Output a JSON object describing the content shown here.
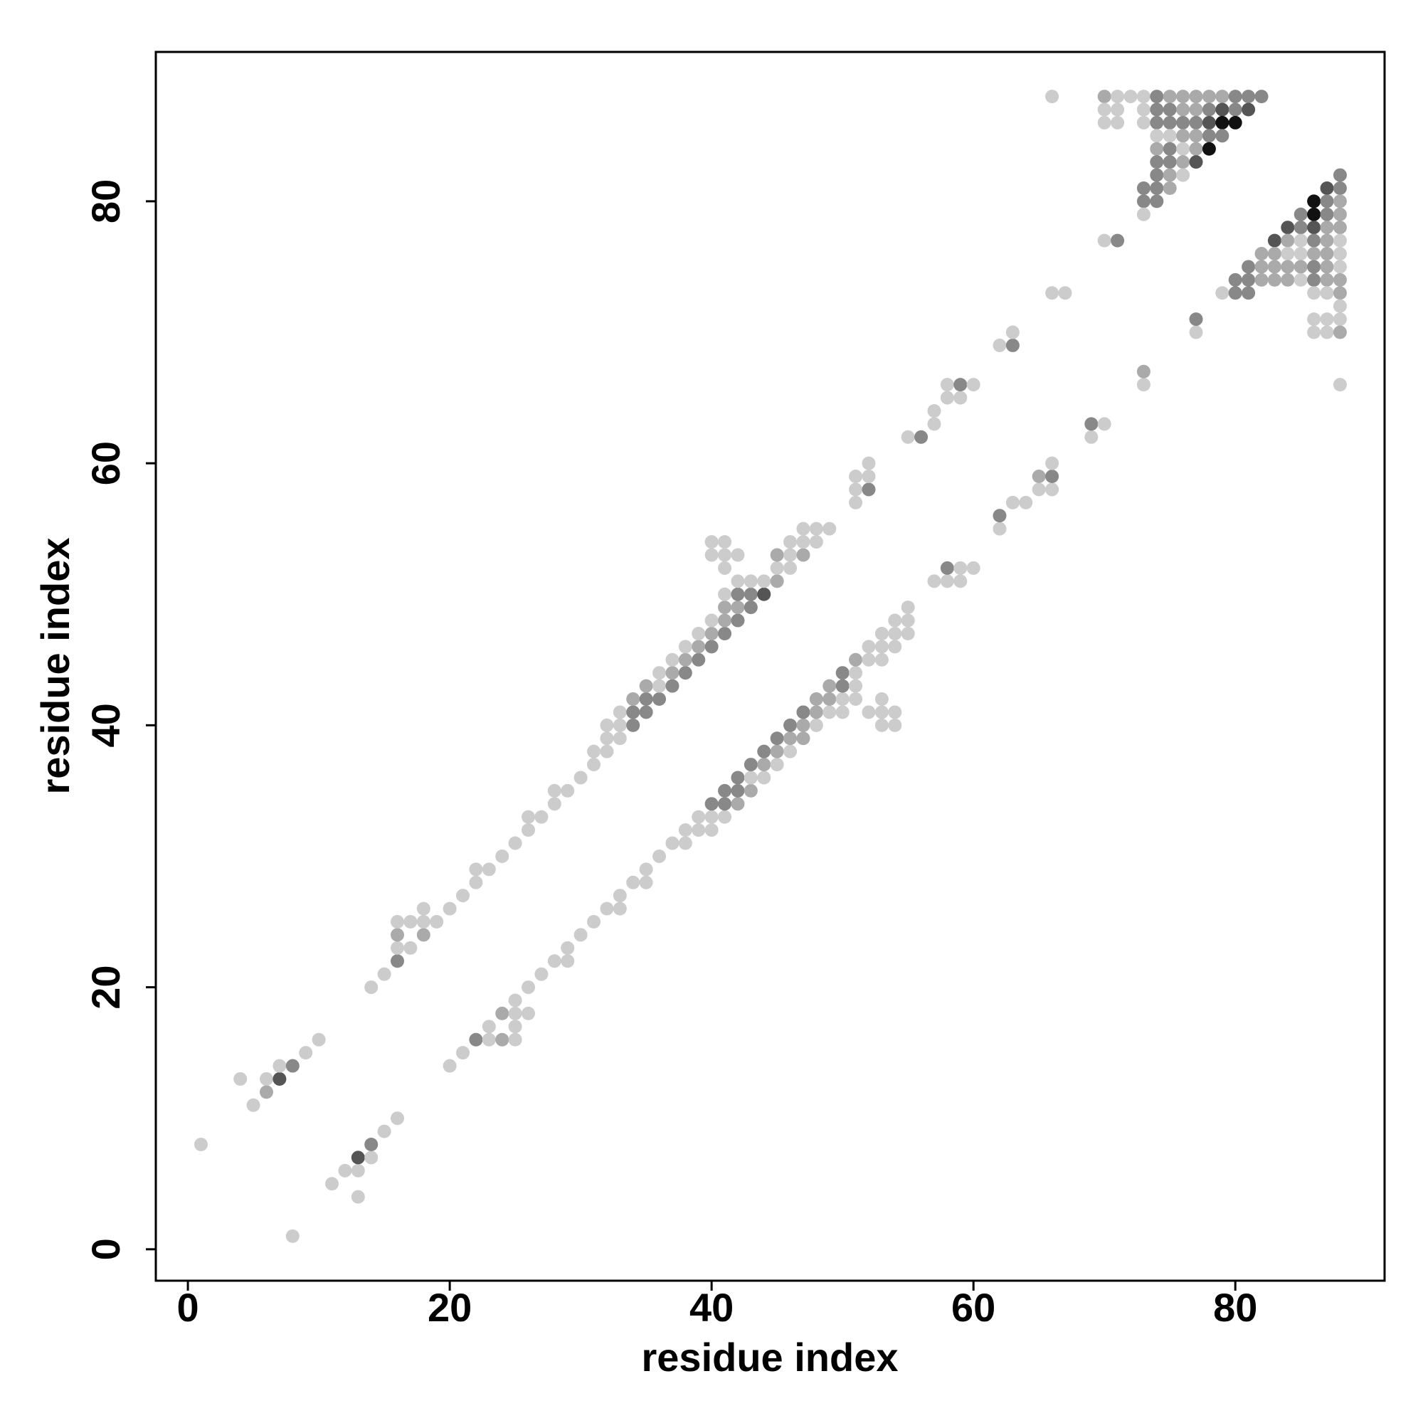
{
  "chart_data": {
    "type": "scatter",
    "xlabel": "residue index",
    "ylabel": "residue index",
    "xlim": [
      -2.45,
      91.4
    ],
    "ylim": [
      -2.4,
      91.4
    ],
    "xticks": [
      0,
      20,
      40,
      60,
      80
    ],
    "yticks": [
      0,
      20,
      40,
      60,
      80
    ],
    "x": [
      1,
      4,
      5,
      6,
      6,
      7,
      7,
      8,
      9,
      10,
      14,
      15,
      16,
      16,
      16,
      16,
      17,
      17,
      18,
      18,
      18,
      19,
      20,
      21,
      22,
      22,
      23,
      24,
      25,
      26,
      26,
      27,
      28,
      28,
      29,
      30,
      31,
      31,
      32,
      32,
      32,
      33,
      33,
      33,
      34,
      34,
      34,
      35,
      35,
      35,
      36,
      36,
      36,
      37,
      37,
      37,
      38,
      38,
      38,
      39,
      39,
      39,
      40,
      40,
      40,
      41,
      41,
      41,
      41,
      42,
      42,
      42,
      42,
      43,
      43,
      43,
      44,
      44,
      45,
      45,
      45,
      46,
      46,
      46,
      47,
      47,
      47,
      48,
      48,
      49,
      40,
      40,
      41,
      41,
      41,
      42,
      51,
      51,
      51,
      52,
      52,
      52,
      55,
      56,
      57,
      57,
      58,
      58,
      59,
      59,
      60,
      62,
      63,
      63,
      66,
      67,
      70,
      71,
      66,
      70,
      71,
      72,
      73,
      74,
      75,
      76,
      77,
      78,
      79,
      80,
      81,
      82,
      70,
      71,
      73,
      74,
      75,
      76,
      77,
      78,
      79,
      80,
      81,
      70,
      71,
      73,
      74,
      75,
      76,
      77,
      78,
      79,
      80,
      74,
      75,
      76,
      77,
      78,
      79,
      74,
      75,
      76,
      77,
      78,
      74,
      75,
      76,
      77,
      74,
      75,
      76,
      73,
      74,
      75,
      73,
      74,
      73,
      8,
      13,
      11,
      12,
      13,
      13,
      14,
      14,
      15,
      16,
      20,
      21,
      22,
      23,
      23,
      24,
      24,
      25,
      25,
      25,
      25,
      26,
      26,
      27,
      28,
      29,
      29,
      30,
      31,
      32,
      33,
      33,
      34,
      35,
      35,
      36,
      37,
      38,
      38,
      39,
      39,
      40,
      40,
      40,
      41,
      41,
      41,
      42,
      42,
      42,
      43,
      43,
      43,
      44,
      44,
      44,
      45,
      45,
      45,
      46,
      46,
      46,
      47,
      47,
      47,
      48,
      48,
      48,
      49,
      49,
      49,
      50,
      50,
      50,
      50,
      51,
      51,
      51,
      51,
      52,
      52,
      52,
      53,
      53,
      53,
      53,
      53,
      53,
      54,
      54,
      54,
      54,
      54,
      55,
      55,
      55,
      57,
      58,
      58,
      59,
      59,
      60,
      62,
      62,
      63,
      64,
      65,
      65,
      66,
      66,
      66,
      69,
      69,
      70,
      73,
      73,
      77,
      77,
      88,
      88,
      87,
      88,
      86,
      87,
      88,
      85,
      86,
      87,
      88,
      84,
      85,
      86,
      87,
      88,
      83,
      84,
      85,
      86,
      87,
      88,
      82,
      83,
      84,
      85,
      86,
      87,
      88,
      81,
      82,
      83,
      84,
      85,
      86,
      87,
      88,
      80,
      81,
      82,
      83,
      84,
      85,
      86,
      87,
      88,
      79,
      80,
      81,
      86,
      87,
      88,
      88,
      86,
      87,
      88,
      86,
      87,
      88
    ],
    "values": [
      8,
      13,
      11,
      12,
      13,
      13,
      14,
      14,
      15,
      16,
      20,
      21,
      22,
      23,
      24,
      25,
      23,
      25,
      24,
      25,
      26,
      25,
      26,
      27,
      28,
      29,
      29,
      30,
      31,
      32,
      33,
      33,
      34,
      35,
      35,
      36,
      37,
      38,
      38,
      39,
      40,
      39,
      40,
      41,
      40,
      41,
      42,
      41,
      42,
      43,
      42,
      43,
      44,
      43,
      44,
      45,
      44,
      45,
      46,
      45,
      46,
      47,
      46,
      47,
      48,
      47,
      48,
      49,
      50,
      48,
      49,
      50,
      51,
      49,
      50,
      51,
      50,
      51,
      51,
      52,
      53,
      52,
      53,
      54,
      53,
      54,
      55,
      54,
      55,
      55,
      53,
      54,
      53,
      54,
      52,
      53,
      57,
      58,
      59,
      58,
      59,
      60,
      62,
      62,
      63,
      64,
      65,
      66,
      65,
      66,
      66,
      69,
      69,
      70,
      73,
      73,
      77,
      77,
      88,
      88,
      88,
      88,
      88,
      88,
      88,
      88,
      88,
      88,
      88,
      88,
      88,
      88,
      87,
      87,
      87,
      87,
      87,
      87,
      87,
      87,
      87,
      87,
      87,
      86,
      86,
      86,
      86,
      86,
      86,
      86,
      86,
      86,
      86,
      85,
      85,
      85,
      85,
      85,
      85,
      84,
      84,
      84,
      84,
      84,
      83,
      83,
      83,
      83,
      82,
      82,
      82,
      81,
      81,
      81,
      80,
      80,
      79,
      1,
      4,
      5,
      6,
      6,
      7,
      7,
      8,
      9,
      10,
      14,
      15,
      16,
      16,
      17,
      16,
      18,
      16,
      17,
      18,
      19,
      18,
      20,
      21,
      22,
      22,
      23,
      24,
      25,
      26,
      26,
      27,
      28,
      28,
      29,
      30,
      31,
      31,
      32,
      32,
      33,
      32,
      33,
      34,
      33,
      34,
      35,
      34,
      35,
      36,
      35,
      36,
      37,
      36,
      37,
      38,
      37,
      38,
      39,
      38,
      39,
      40,
      39,
      40,
      41,
      40,
      41,
      42,
      41,
      42,
      43,
      41,
      42,
      43,
      44,
      42,
      43,
      44,
      45,
      41,
      45,
      46,
      40,
      41,
      42,
      45,
      46,
      47,
      40,
      41,
      46,
      47,
      48,
      47,
      48,
      49,
      51,
      51,
      52,
      51,
      52,
      52,
      55,
      56,
      57,
      57,
      58,
      59,
      58,
      59,
      60,
      62,
      63,
      63,
      66,
      67,
      70,
      71,
      66,
      82,
      81,
      81,
      80,
      80,
      80,
      79,
      79,
      79,
      79,
      78,
      78,
      78,
      78,
      78,
      77,
      77,
      77,
      77,
      77,
      77,
      76,
      76,
      76,
      76,
      76,
      76,
      76,
      75,
      75,
      75,
      75,
      75,
      75,
      75,
      75,
      74,
      74,
      74,
      74,
      74,
      74,
      74,
      74,
      74,
      73,
      73,
      73,
      73,
      73,
      73,
      72,
      71,
      71,
      71,
      70,
      70,
      70
    ],
    "colors": [
      "#ccc",
      "#ccc",
      "#ccc",
      "#aaa",
      "#ccc",
      "#555",
      "#ccc",
      "#888",
      "#ccc",
      "#ccc",
      "#ccc",
      "#ccc",
      "#888",
      "#ccc",
      "#aaa",
      "#ccc",
      "#ccc",
      "#ccc",
      "#aaa",
      "#ccc",
      "#ccc",
      "#ccc",
      "#ccc",
      "#ccc",
      "#ccc",
      "#ccc",
      "#ccc",
      "#ccc",
      "#ccc",
      "#ccc",
      "#ccc",
      "#ccc",
      "#ccc",
      "#ccc",
      "#ccc",
      "#ccc",
      "#ccc",
      "#ccc",
      "#ccc",
      "#ccc",
      "#ccc",
      "#ccc",
      "#ccc",
      "#ccc",
      "#888",
      "#888",
      "#aaa",
      "#888",
      "#888",
      "#aaa",
      "#888",
      "#ccc",
      "#ccc",
      "#888",
      "#aaa",
      "#ccc",
      "#888",
      "#aaa",
      "#ccc",
      "#888",
      "#aaa",
      "#ccc",
      "#888",
      "#aaa",
      "#ccc",
      "#888",
      "#aaa",
      "#aaa",
      "#ccc",
      "#888",
      "#aaa",
      "#888",
      "#ccc",
      "#888",
      "#888",
      "#ccc",
      "#555",
      "#ccc",
      "#aaa",
      "#ccc",
      "#aaa",
      "#ccc",
      "#ccc",
      "#ccc",
      "#aaa",
      "#ccc",
      "#ccc",
      "#ccc",
      "#ccc",
      "#ccc",
      "#ccc",
      "#ccc",
      "#ccc",
      "#ccc",
      "#ccc",
      "#ccc",
      "#ccc",
      "#ccc",
      "#ccc",
      "#888",
      "#ccc",
      "#ccc",
      "#ccc",
      "#888",
      "#ccc",
      "#ccc",
      "#ccc",
      "#ccc",
      "#ccc",
      "#888",
      "#ccc",
      "#ccc",
      "#888",
      "#ccc",
      "#ccc",
      "#ccc",
      "#ccc",
      "#888",
      "#ccc",
      "#aaa",
      "#ccc",
      "#ccc",
      "#ccc",
      "#888",
      "#aaa",
      "#aaa",
      "#aaa",
      "#aaa",
      "#aaa",
      "#888",
      "#888",
      "#888",
      "#ccc",
      "#ccc",
      "#ccc",
      "#888",
      "#888",
      "#aaa",
      "#aaa",
      "#888",
      "#555",
      "#888",
      "#555",
      "#ccc",
      "#ccc",
      "#ccc",
      "#888",
      "#888",
      "#888",
      "#888",
      "#555",
      "#111",
      "#111",
      "#ccc",
      "#ccc",
      "#aaa",
      "#aaa",
      "#888",
      "#888",
      "#aaa",
      "#888",
      "#ccc",
      "#aaa",
      "#111",
      "#888",
      "#888",
      "#aaa",
      "#555",
      "#888",
      "#aaa",
      "#ccc",
      "#888",
      "#888",
      "#aaa",
      "#888",
      "#888",
      "#ccc",
      "#ccc",
      "#ccc",
      "#ccc",
      "#ccc",
      "#ccc",
      "#555",
      "#ccc",
      "#888",
      "#ccc",
      "#ccc",
      "#ccc",
      "#ccc",
      "#888",
      "#ccc",
      "#ccc",
      "#aaa",
      "#aaa",
      "#ccc",
      "#ccc",
      "#ccc",
      "#ccc",
      "#ccc",
      "#ccc",
      "#ccc",
      "#ccc",
      "#ccc",
      "#ccc",
      "#ccc",
      "#ccc",
      "#ccc",
      "#ccc",
      "#ccc",
      "#ccc",
      "#ccc",
      "#ccc",
      "#ccc",
      "#ccc",
      "#ccc",
      "#ccc",
      "#ccc",
      "#ccc",
      "#ccc",
      "#ccc",
      "#888",
      "#ccc",
      "#888",
      "#888",
      "#aaa",
      "#888",
      "#888",
      "#aaa",
      "#ccc",
      "#888",
      "#ccc",
      "#aaa",
      "#888",
      "#ccc",
      "#aaa",
      "#888",
      "#ccc",
      "#aaa",
      "#888",
      "#aaa",
      "#aaa",
      "#888",
      "#ccc",
      "#aaa",
      "#aaa",
      "#ccc",
      "#aaa",
      "#aaa",
      "#ccc",
      "#ccc",
      "#888",
      "#888",
      "#ccc",
      "#ccc",
      "#ccc",
      "#aaa",
      "#ccc",
      "#ccc",
      "#ccc",
      "#ccc",
      "#ccc",
      "#ccc",
      "#ccc",
      "#ccc",
      "#ccc",
      "#ccc",
      "#ccc",
      "#ccc",
      "#ccc",
      "#ccc",
      "#ccc",
      "#ccc",
      "#ccc",
      "#ccc",
      "#ccc",
      "#888",
      "#ccc",
      "#ccc",
      "#ccc",
      "#ccc",
      "#888",
      "#ccc",
      "#ccc",
      "#ccc",
      "#aaa",
      "#ccc",
      "#888",
      "#ccc",
      "#ccc",
      "#888",
      "#ccc",
      "#ccc",
      "#aaa",
      "#ccc",
      "#888",
      "#ccc",
      "#888",
      "#555",
      "#888",
      "#111",
      "#888",
      "#aaa",
      "#888",
      "#111",
      "#888",
      "#aaa",
      "#555",
      "#888",
      "#555",
      "#aaa",
      "#aaa",
      "#555",
      "#aaa",
      "#ccc",
      "#888",
      "#aaa",
      "#ccc",
      "#aaa",
      "#aaa",
      "#ccc",
      "#ccc",
      "#aaa",
      "#aaa",
      "#ccc",
      "#888",
      "#aaa",
      "#aaa",
      "#aaa",
      "#aaa",
      "#888",
      "#aaa",
      "#ccc",
      "#888",
      "#888",
      "#aaa",
      "#aaa",
      "#aaa",
      "#ccc",
      "#888",
      "#aaa",
      "#aaa",
      "#ccc",
      "#888",
      "#888",
      "#ccc",
      "#ccc",
      "#aaa",
      "#ccc",
      "#ccc",
      "#ccc",
      "#ccc",
      "#ccc",
      "#ccc",
      "#aaa"
    ]
  }
}
